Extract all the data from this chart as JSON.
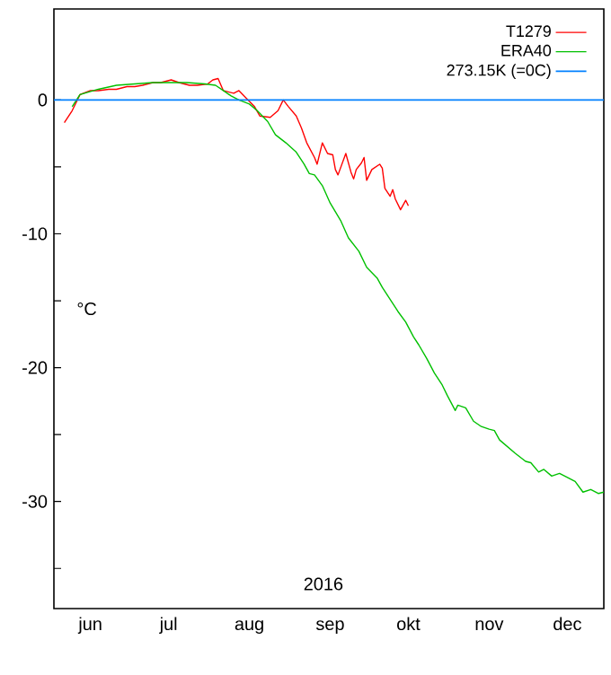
{
  "chart_data": {
    "type": "line",
    "xlabel": "2016",
    "ylabel": "°C",
    "xlim": [
      "2016-06-01",
      "2016-12-29"
    ],
    "xticks": [
      {
        "value": "2016-06-15",
        "label": "jun"
      },
      {
        "value": "2016-07-15",
        "label": "jul"
      },
      {
        "value": "2016-08-15",
        "label": "aug"
      },
      {
        "value": "2016-09-15",
        "label": "sep"
      },
      {
        "value": "2016-10-15",
        "label": "okt"
      },
      {
        "value": "2016-11-15",
        "label": "nov"
      },
      {
        "value": "2016-12-15",
        "label": "dec"
      }
    ],
    "ylim": [
      -38,
      6.8
    ],
    "yticks": [
      -30,
      -20,
      -10,
      0,
      {
        "value": -35,
        "label": null
      },
      {
        "value": -25,
        "label": null
      },
      {
        "value": -15,
        "label": null
      },
      {
        "value": -5,
        "label": null
      }
    ],
    "legend": "top right",
    "marker": "none",
    "line_style": "solid",
    "grid": false,
    "series": [
      {
        "name": "T1279",
        "color": "#ff0000",
        "x": [
          "2016-06-05",
          "2016-06-08",
          "2016-06-11",
          "2016-06-15",
          "2016-06-18",
          "2016-06-22",
          "2016-06-25",
          "2016-06-29",
          "2016-07-02",
          "2016-07-05",
          "2016-07-09",
          "2016-07-12",
          "2016-07-16",
          "2016-07-19",
          "2016-07-23",
          "2016-07-26",
          "2016-07-30",
          "2016-08-01",
          "2016-08-03",
          "2016-08-05",
          "2016-08-09",
          "2016-08-11",
          "2016-08-14",
          "2016-08-17",
          "2016-08-19",
          "2016-08-23",
          "2016-08-26",
          "2016-08-28",
          "2016-08-30",
          "2016-09-02",
          "2016-09-04",
          "2016-09-06",
          "2016-09-09",
          "2016-09-10",
          "2016-09-12",
          "2016-09-14",
          "2016-09-16",
          "2016-09-17",
          "2016-09-18",
          "2016-09-21",
          "2016-09-23",
          "2016-09-24",
          "2016-09-25",
          "2016-09-27",
          "2016-09-28",
          "2016-09-29",
          "2016-10-01",
          "2016-10-04",
          "2016-10-05",
          "2016-10-06",
          "2016-10-08",
          "2016-10-09",
          "2016-10-10",
          "2016-10-12",
          "2016-10-14",
          "2016-10-15"
        ],
        "values": [
          -1.7,
          -0.8,
          0.4,
          0.7,
          0.7,
          0.8,
          0.8,
          1.0,
          1.0,
          1.1,
          1.3,
          1.3,
          1.5,
          1.3,
          1.1,
          1.1,
          1.2,
          1.5,
          1.6,
          0.7,
          0.5,
          0.7,
          0.1,
          -0.5,
          -1.2,
          -1.3,
          -0.8,
          0,
          -0.5,
          -1.2,
          -2.1,
          -3.2,
          -4.3,
          -4.8,
          -3.2,
          -4.0,
          -4.1,
          -5.2,
          -5.6,
          -4.0,
          -5.4,
          -5.9,
          -5.2,
          -4.7,
          -4.3,
          -6.0,
          -5.2,
          -4.8,
          -5.1,
          -6.6,
          -7.2,
          -6.7,
          -7.4,
          -8.2,
          -7.5,
          -7.9
        ]
      },
      {
        "name": "ERA40",
        "color": "#00c000",
        "x": [
          "2016-06-08",
          "2016-06-11",
          "2016-06-18",
          "2016-06-25",
          "2016-07-02",
          "2016-07-09",
          "2016-07-15",
          "2016-07-22",
          "2016-07-29",
          "2016-08-02",
          "2016-08-05",
          "2016-08-08",
          "2016-08-11",
          "2016-08-15",
          "2016-08-18",
          "2016-08-22",
          "2016-08-25",
          "2016-08-29",
          "2016-09-02",
          "2016-09-05",
          "2016-09-07",
          "2016-09-09",
          "2016-09-12",
          "2016-09-15",
          "2016-09-19",
          "2016-09-22",
          "2016-09-26",
          "2016-09-29",
          "2016-10-03",
          "2016-10-05",
          "2016-10-08",
          "2016-10-11",
          "2016-10-14",
          "2016-10-17",
          "2016-10-19",
          "2016-10-22",
          "2016-10-25",
          "2016-10-28",
          "2016-10-30",
          "2016-11-02",
          "2016-11-03",
          "2016-11-06",
          "2016-11-09",
          "2016-11-12",
          "2016-11-15",
          "2016-11-17",
          "2016-11-19",
          "2016-11-22",
          "2016-11-25",
          "2016-11-27",
          "2016-11-29",
          "2016-12-01",
          "2016-12-04",
          "2016-12-06",
          "2016-12-09",
          "2016-12-12",
          "2016-12-15",
          "2016-12-18",
          "2016-12-21",
          "2016-12-24",
          "2016-12-27",
          "2016-12-29"
        ],
        "values": [
          -0.5,
          0.4,
          0.8,
          1.1,
          1.2,
          1.3,
          1.3,
          1.3,
          1.2,
          1.1,
          0.7,
          0.3,
          0,
          -0.3,
          -0.8,
          -1.6,
          -2.6,
          -3.2,
          -3.9,
          -4.8,
          -5.5,
          -5.6,
          -6.4,
          -7.7,
          -9.0,
          -10.3,
          -11.3,
          -12.5,
          -13.3,
          -14.0,
          -14.9,
          -15.8,
          -16.6,
          -17.7,
          -18.3,
          -19.3,
          -20.4,
          -21.3,
          -22.1,
          -23.2,
          -22.8,
          -23.0,
          -24.0,
          -24.4,
          -24.6,
          -24.7,
          -25.4,
          -25.9,
          -26.4,
          -26.7,
          -27.0,
          -27.1,
          -27.8,
          -27.6,
          -28.1,
          -27.9,
          -28.2,
          -28.5,
          -29.3,
          -29.1,
          -29.4,
          -29.3
        ]
      }
    ],
    "ref_lines": [
      {
        "axis": "y",
        "value": 0,
        "label": "273.15K (=0C)",
        "color": "#0080ff"
      }
    ]
  }
}
